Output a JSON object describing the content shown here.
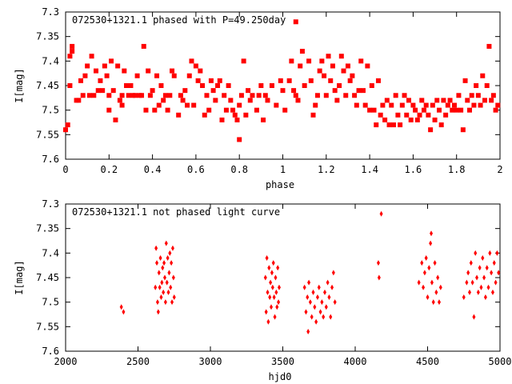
{
  "chart_data": [
    {
      "type": "scatter",
      "title": "072530+1321.1 phased with P=49.250day",
      "xlabel": "phase",
      "ylabel": "I[mag]",
      "xlim": [
        0,
        2
      ],
      "ylim": [
        7.6,
        7.3
      ],
      "y_inverted": true,
      "xticks": [
        "0",
        "0.2",
        "0.4",
        "0.6",
        "0.8",
        "1",
        "1.2",
        "1.4",
        "1.6",
        "1.8",
        "2"
      ],
      "yticks": [
        "7.3",
        "7.35",
        "7.4",
        "7.45",
        "7.5",
        "7.55",
        "7.6"
      ],
      "grid": false,
      "marker": "filled star/square",
      "color": "#ff0000",
      "points": [
        [
          0.0,
          7.54
        ],
        [
          0.01,
          7.53
        ],
        [
          0.02,
          7.45
        ],
        [
          0.02,
          7.39
        ],
        [
          0.03,
          7.37
        ],
        [
          0.03,
          7.38
        ],
        [
          0.05,
          7.48
        ],
        [
          0.06,
          7.48
        ],
        [
          0.07,
          7.44
        ],
        [
          0.08,
          7.47
        ],
        [
          0.09,
          7.43
        ],
        [
          0.1,
          7.41
        ],
        [
          0.11,
          7.47
        ],
        [
          0.12,
          7.39
        ],
        [
          0.13,
          7.47
        ],
        [
          0.14,
          7.42
        ],
        [
          0.15,
          7.46
        ],
        [
          0.16,
          7.44
        ],
        [
          0.17,
          7.46
        ],
        [
          0.18,
          7.41
        ],
        [
          0.19,
          7.43
        ],
        [
          0.2,
          7.5
        ],
        [
          0.2,
          7.47
        ],
        [
          0.21,
          7.4
        ],
        [
          0.22,
          7.46
        ],
        [
          0.23,
          7.52
        ],
        [
          0.24,
          7.41
        ],
        [
          0.25,
          7.48
        ],
        [
          0.26,
          7.47
        ],
        [
          0.26,
          7.49
        ],
        [
          0.27,
          7.42
        ],
        [
          0.28,
          7.45
        ],
        [
          0.29,
          7.47
        ],
        [
          0.3,
          7.45
        ],
        [
          0.31,
          7.47
        ],
        [
          0.32,
          7.47
        ],
        [
          0.33,
          7.43
        ],
        [
          0.34,
          7.47
        ],
        [
          0.35,
          7.47
        ],
        [
          0.36,
          7.37
        ],
        [
          0.37,
          7.5
        ],
        [
          0.38,
          7.42
        ],
        [
          0.39,
          7.47
        ],
        [
          0.4,
          7.46
        ],
        [
          0.41,
          7.5
        ],
        [
          0.42,
          7.43
        ],
        [
          0.43,
          7.49
        ],
        [
          0.44,
          7.45
        ],
        [
          0.45,
          7.48
        ],
        [
          0.46,
          7.47
        ],
        [
          0.47,
          7.5
        ],
        [
          0.48,
          7.47
        ],
        [
          0.49,
          7.42
        ],
        [
          0.5,
          7.43
        ],
        [
          0.52,
          7.51
        ],
        [
          0.53,
          7.47
        ],
        [
          0.54,
          7.48
        ],
        [
          0.55,
          7.46
        ],
        [
          0.56,
          7.49
        ],
        [
          0.57,
          7.43
        ],
        [
          0.58,
          7.4
        ],
        [
          0.59,
          7.49
        ],
        [
          0.6,
          7.41
        ],
        [
          0.61,
          7.44
        ],
        [
          0.62,
          7.42
        ],
        [
          0.63,
          7.45
        ],
        [
          0.64,
          7.51
        ],
        [
          0.65,
          7.47
        ],
        [
          0.66,
          7.5
        ],
        [
          0.67,
          7.44
        ],
        [
          0.68,
          7.46
        ],
        [
          0.69,
          7.48
        ],
        [
          0.7,
          7.45
        ],
        [
          0.71,
          7.44
        ],
        [
          0.72,
          7.52
        ],
        [
          0.73,
          7.47
        ],
        [
          0.74,
          7.5
        ],
        [
          0.75,
          7.45
        ],
        [
          0.76,
          7.48
        ],
        [
          0.77,
          7.5
        ],
        [
          0.78,
          7.51
        ],
        [
          0.79,
          7.52
        ],
        [
          0.8,
          7.56
        ],
        [
          0.8,
          7.49
        ],
        [
          0.81,
          7.47
        ],
        [
          0.82,
          7.4
        ],
        [
          0.83,
          7.51
        ],
        [
          0.84,
          7.46
        ],
        [
          0.85,
          7.48
        ],
        [
          0.86,
          7.47
        ],
        [
          0.88,
          7.5
        ],
        [
          0.89,
          7.47
        ],
        [
          0.9,
          7.45
        ],
        [
          0.91,
          7.52
        ],
        [
          0.92,
          7.47
        ],
        [
          0.93,
          7.48
        ],
        [
          0.95,
          7.45
        ],
        [
          0.97,
          7.49
        ],
        [
          0.99,
          7.44
        ],
        [
          1.0,
          7.46
        ],
        [
          1.01,
          7.5
        ],
        [
          1.03,
          7.44
        ],
        [
          1.04,
          7.4
        ],
        [
          1.05,
          7.46
        ],
        [
          1.06,
          7.32
        ],
        [
          1.06,
          7.47
        ],
        [
          1.07,
          7.48
        ],
        [
          1.08,
          7.41
        ],
        [
          1.09,
          7.38
        ],
        [
          1.1,
          7.45
        ],
        [
          1.12,
          7.4
        ],
        [
          1.13,
          7.44
        ],
        [
          1.14,
          7.51
        ],
        [
          1.15,
          7.49
        ],
        [
          1.16,
          7.47
        ],
        [
          1.17,
          7.42
        ],
        [
          1.18,
          7.4
        ],
        [
          1.19,
          7.43
        ],
        [
          1.2,
          7.47
        ],
        [
          1.21,
          7.39
        ],
        [
          1.22,
          7.44
        ],
        [
          1.23,
          7.41
        ],
        [
          1.24,
          7.46
        ],
        [
          1.25,
          7.48
        ],
        [
          1.26,
          7.45
        ],
        [
          1.27,
          7.39
        ],
        [
          1.28,
          7.42
        ],
        [
          1.29,
          7.47
        ],
        [
          1.3,
          7.41
        ],
        [
          1.31,
          7.44
        ],
        [
          1.32,
          7.43
        ],
        [
          1.33,
          7.47
        ],
        [
          1.34,
          7.49
        ],
        [
          1.35,
          7.46
        ],
        [
          1.36,
          7.4
        ],
        [
          1.37,
          7.46
        ],
        [
          1.38,
          7.49
        ],
        [
          1.39,
          7.41
        ],
        [
          1.4,
          7.5
        ],
        [
          1.41,
          7.45
        ],
        [
          1.42,
          7.5
        ],
        [
          1.43,
          7.53
        ],
        [
          1.44,
          7.44
        ],
        [
          1.45,
          7.51
        ],
        [
          1.46,
          7.49
        ],
        [
          1.47,
          7.52
        ],
        [
          1.48,
          7.48
        ],
        [
          1.49,
          7.53
        ],
        [
          1.5,
          7.49
        ],
        [
          1.51,
          7.53
        ],
        [
          1.52,
          7.47
        ],
        [
          1.53,
          7.51
        ],
        [
          1.54,
          7.53
        ],
        [
          1.55,
          7.49
        ],
        [
          1.56,
          7.47
        ],
        [
          1.57,
          7.51
        ],
        [
          1.58,
          7.48
        ],
        [
          1.59,
          7.52
        ],
        [
          1.6,
          7.49
        ],
        [
          1.61,
          7.5
        ],
        [
          1.62,
          7.52
        ],
        [
          1.63,
          7.51
        ],
        [
          1.64,
          7.48
        ],
        [
          1.65,
          7.5
        ],
        [
          1.66,
          7.49
        ],
        [
          1.67,
          7.51
        ],
        [
          1.68,
          7.54
        ],
        [
          1.69,
          7.49
        ],
        [
          1.7,
          7.52
        ],
        [
          1.71,
          7.48
        ],
        [
          1.72,
          7.5
        ],
        [
          1.73,
          7.53
        ],
        [
          1.74,
          7.48
        ],
        [
          1.75,
          7.51
        ],
        [
          1.76,
          7.49
        ],
        [
          1.77,
          7.48
        ],
        [
          1.78,
          7.5
        ],
        [
          1.79,
          7.49
        ],
        [
          1.8,
          7.5
        ],
        [
          1.81,
          7.47
        ],
        [
          1.82,
          7.5
        ],
        [
          1.83,
          7.54
        ],
        [
          1.84,
          7.44
        ],
        [
          1.85,
          7.48
        ],
        [
          1.86,
          7.5
        ],
        [
          1.87,
          7.47
        ],
        [
          1.88,
          7.49
        ],
        [
          1.89,
          7.45
        ],
        [
          1.9,
          7.47
        ],
        [
          1.91,
          7.49
        ],
        [
          1.92,
          7.43
        ],
        [
          1.93,
          7.48
        ],
        [
          1.94,
          7.45
        ],
        [
          1.95,
          7.37
        ],
        [
          1.96,
          7.48
        ],
        [
          1.97,
          7.47
        ],
        [
          1.98,
          7.5
        ],
        [
          1.99,
          7.49
        ]
      ]
    },
    {
      "type": "scatter",
      "title": "072530+1321.1 not phased light curve",
      "xlabel": "hjd0",
      "ylabel": "I[mag]",
      "xlim": [
        2000,
        5000
      ],
      "ylim": [
        7.6,
        7.3
      ],
      "y_inverted": true,
      "xticks": [
        "2000",
        "2500",
        "3000",
        "3500",
        "4000",
        "4500",
        "5000"
      ],
      "yticks": [
        "7.3",
        "7.35",
        "7.4",
        "7.45",
        "7.5",
        "7.55",
        "7.6"
      ],
      "grid": false,
      "marker": "diamond",
      "color": "#ff0000",
      "points": [
        [
          2385,
          7.51
        ],
        [
          2400,
          7.52
        ],
        [
          2620,
          7.47
        ],
        [
          2625,
          7.39
        ],
        [
          2630,
          7.42
        ],
        [
          2635,
          7.5
        ],
        [
          2640,
          7.52
        ],
        [
          2645,
          7.44
        ],
        [
          2650,
          7.47
        ],
        [
          2655,
          7.41
        ],
        [
          2660,
          7.49
        ],
        [
          2665,
          7.46
        ],
        [
          2670,
          7.43
        ],
        [
          2675,
          7.48
        ],
        [
          2680,
          7.42
        ],
        [
          2685,
          7.45
        ],
        [
          2690,
          7.5
        ],
        [
          2695,
          7.38
        ],
        [
          2700,
          7.46
        ],
        [
          2705,
          7.41
        ],
        [
          2710,
          7.48
        ],
        [
          2715,
          7.44
        ],
        [
          2720,
          7.4
        ],
        [
          2725,
          7.47
        ],
        [
          2730,
          7.42
        ],
        [
          2735,
          7.5
        ],
        [
          2740,
          7.39
        ],
        [
          2745,
          7.45
        ],
        [
          2750,
          7.49
        ],
        [
          3380,
          7.45
        ],
        [
          3385,
          7.52
        ],
        [
          3390,
          7.41
        ],
        [
          3395,
          7.48
        ],
        [
          3400,
          7.54
        ],
        [
          3405,
          7.43
        ],
        [
          3410,
          7.49
        ],
        [
          3415,
          7.46
        ],
        [
          3420,
          7.51
        ],
        [
          3425,
          7.44
        ],
        [
          3430,
          7.47
        ],
        [
          3435,
          7.42
        ],
        [
          3440,
          7.49
        ],
        [
          3445,
          7.53
        ],
        [
          3450,
          7.45
        ],
        [
          3455,
          7.48
        ],
        [
          3460,
          7.51
        ],
        [
          3465,
          7.43
        ],
        [
          3470,
          7.5
        ],
        [
          3475,
          7.47
        ],
        [
          3650,
          7.47
        ],
        [
          3660,
          7.52
        ],
        [
          3670,
          7.49
        ],
        [
          3675,
          7.56
        ],
        [
          3680,
          7.46
        ],
        [
          3690,
          7.5
        ],
        [
          3700,
          7.53
        ],
        [
          3710,
          7.48
        ],
        [
          3720,
          7.51
        ],
        [
          3730,
          7.54
        ],
        [
          3740,
          7.49
        ],
        [
          3750,
          7.47
        ],
        [
          3760,
          7.52
        ],
        [
          3770,
          7.5
        ],
        [
          3780,
          7.53
        ],
        [
          3790,
          7.48
        ],
        [
          3800,
          7.51
        ],
        [
          3810,
          7.46
        ],
        [
          3820,
          7.49
        ],
        [
          3830,
          7.53
        ],
        [
          3840,
          7.47
        ],
        [
          3850,
          7.44
        ],
        [
          3860,
          7.5
        ],
        [
          4160,
          7.42
        ],
        [
          4165,
          7.45
        ],
        [
          4180,
          7.32
        ],
        [
          4440,
          7.46
        ],
        [
          4460,
          7.42
        ],
        [
          4470,
          7.47
        ],
        [
          4480,
          7.44
        ],
        [
          4490,
          7.41
        ],
        [
          4500,
          7.49
        ],
        [
          4510,
          7.43
        ],
        [
          4520,
          7.38
        ],
        [
          4525,
          7.36
        ],
        [
          4530,
          7.46
        ],
        [
          4540,
          7.5
        ],
        [
          4550,
          7.42
        ],
        [
          4560,
          7.48
        ],
        [
          4570,
          7.45
        ],
        [
          4580,
          7.5
        ],
        [
          4590,
          7.47
        ],
        [
          4750,
          7.49
        ],
        [
          4770,
          7.46
        ],
        [
          4780,
          7.44
        ],
        [
          4790,
          7.48
        ],
        [
          4800,
          7.42
        ],
        [
          4810,
          7.46
        ],
        [
          4820,
          7.53
        ],
        [
          4830,
          7.4
        ],
        [
          4840,
          7.45
        ],
        [
          4850,
          7.48
        ],
        [
          4860,
          7.43
        ],
        [
          4870,
          7.47
        ],
        [
          4880,
          7.41
        ],
        [
          4890,
          7.45
        ],
        [
          4900,
          7.49
        ],
        [
          4910,
          7.43
        ],
        [
          4920,
          7.47
        ],
        [
          4930,
          7.4
        ],
        [
          4940,
          7.44
        ],
        [
          4950,
          7.48
        ],
        [
          4960,
          7.42
        ],
        [
          4970,
          7.46
        ],
        [
          4980,
          7.4
        ],
        [
          4990,
          7.44
        ]
      ]
    }
  ]
}
